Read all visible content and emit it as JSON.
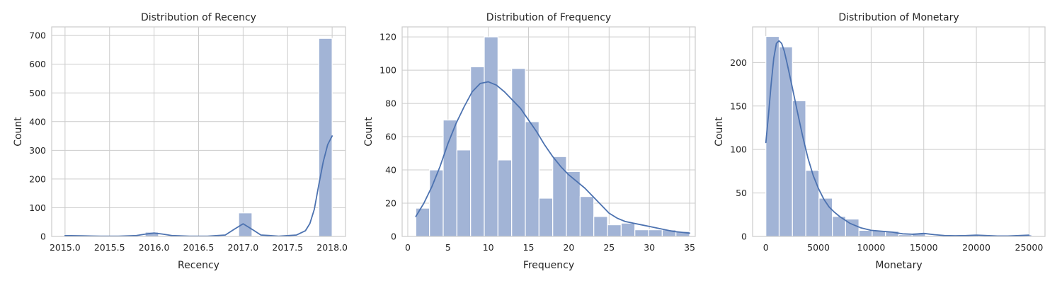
{
  "chart_data": [
    {
      "type": "bar",
      "title": "Distribution of Recency",
      "xlabel": "Recency",
      "ylabel": "Count",
      "xlim": [
        2014.85,
        2018.15
      ],
      "ylim": [
        0,
        730
      ],
      "xticks": [
        2015.0,
        2015.5,
        2016.0,
        2016.5,
        2017.0,
        2017.5,
        2018.0
      ],
      "xtick_labels": [
        "2015.0",
        "2015.5",
        "2016.0",
        "2016.5",
        "2017.0",
        "2017.5",
        "2018.0"
      ],
      "yticks": [
        0,
        100,
        200,
        300,
        400,
        500,
        600,
        700
      ],
      "ytick_labels": [
        "0",
        "100",
        "200",
        "300",
        "400",
        "500",
        "600",
        "700"
      ],
      "bin_edges": [
        2015.0,
        2015.15,
        2015.3,
        2015.45,
        2015.6,
        2015.75,
        2015.9,
        2016.05,
        2016.2,
        2016.35,
        2016.5,
        2016.65,
        2016.8,
        2016.95,
        2017.1,
        2017.25,
        2017.4,
        2017.55,
        2017.7,
        2017.85,
        2018.0
      ],
      "counts": [
        5,
        0,
        0,
        0,
        0,
        0,
        15,
        0,
        0,
        0,
        0,
        0,
        0,
        82,
        0,
        0,
        0,
        0,
        0,
        690
      ],
      "kde": {
        "x": [
          2015.0,
          2015.2,
          2015.4,
          2015.6,
          2015.8,
          2015.9,
          2016.0,
          2016.1,
          2016.2,
          2016.4,
          2016.6,
          2016.8,
          2016.9,
          2017.0,
          2017.1,
          2017.2,
          2017.4,
          2017.6,
          2017.7,
          2017.75,
          2017.8,
          2017.85,
          2017.9,
          2017.95,
          2018.0
        ],
        "y": [
          3,
          2,
          1,
          1,
          3,
          8,
          12,
          8,
          3,
          1,
          1,
          5,
          25,
          44,
          25,
          5,
          1,
          5,
          20,
          45,
          95,
          180,
          260,
          320,
          350
        ]
      }
    },
    {
      "type": "bar",
      "title": "Distribution of Frequency",
      "xlabel": "Frequency",
      "ylabel": "Count",
      "xlim": [
        -0.7,
        35.7
      ],
      "ylim": [
        0,
        126
      ],
      "xticks": [
        0,
        5,
        10,
        15,
        20,
        25,
        30,
        35
      ],
      "xtick_labels": [
        "0",
        "5",
        "10",
        "15",
        "20",
        "25",
        "30",
        "35"
      ],
      "yticks": [
        0,
        20,
        40,
        60,
        80,
        100,
        120
      ],
      "ytick_labels": [
        "0",
        "20",
        "40",
        "60",
        "80",
        "100",
        "120"
      ],
      "bin_edges": [
        1.0,
        2.7,
        4.4,
        6.1,
        7.8,
        9.5,
        11.2,
        12.9,
        14.6,
        16.3,
        18.0,
        19.7,
        21.4,
        23.1,
        24.8,
        26.5,
        28.2,
        29.9,
        31.6,
        33.3,
        35.0
      ],
      "counts": [
        17,
        40,
        70,
        52,
        102,
        120,
        46,
        101,
        69,
        23,
        48,
        39,
        24,
        12,
        7,
        8,
        4,
        4,
        4,
        3
      ],
      "kde": {
        "x": [
          1,
          2,
          3,
          4,
          5,
          6,
          7,
          8,
          9,
          10,
          11,
          12,
          13,
          14,
          15,
          16,
          17,
          18,
          19,
          20,
          21,
          22,
          23,
          24,
          25,
          26,
          27,
          28,
          29,
          30,
          31,
          32,
          33,
          34,
          35
        ],
        "y": [
          12,
          20,
          30,
          42,
          56,
          68,
          78,
          87,
          92,
          93,
          91,
          87,
          82,
          77,
          70,
          63,
          55,
          48,
          42,
          37,
          33,
          29,
          24,
          19,
          14,
          11,
          9,
          8,
          7,
          6,
          5,
          4,
          3,
          2.5,
          2
        ]
      }
    },
    {
      "type": "bar",
      "title": "Distribution of Monetary",
      "xlabel": "Monetary",
      "ylabel": "Count",
      "xlim": [
        -1260,
        26520
      ],
      "ylim": [
        0,
        241
      ],
      "xticks": [
        0,
        5000,
        10000,
        15000,
        20000,
        25000
      ],
      "xtick_labels": [
        "0",
        "5000",
        "10000",
        "15000",
        "20000",
        "25000"
      ],
      "yticks": [
        0,
        50,
        100,
        150,
        200
      ],
      "ytick_labels": [
        "0",
        "50",
        "100",
        "150",
        "200"
      ],
      "bin_edges": [
        0,
        1263,
        2526,
        3789,
        5052,
        6315,
        7578,
        8841,
        10104,
        11367,
        12630,
        13893,
        15156,
        16419,
        17682,
        18945,
        20208,
        21471,
        22734,
        23997,
        25260
      ],
      "counts": [
        230,
        218,
        156,
        76,
        44,
        23,
        20,
        7,
        7,
        6,
        2,
        4,
        1,
        0,
        1,
        2,
        1,
        0,
        0,
        2
      ],
      "kde": {
        "x": [
          0,
          250,
          500,
          750,
          1000,
          1250,
          1500,
          1750,
          2000,
          2500,
          3000,
          3500,
          4000,
          4500,
          5000,
          5500,
          6000,
          6500,
          7000,
          7500,
          8000,
          9000,
          10000,
          11000,
          12000,
          13000,
          14000,
          15000,
          16000,
          17000,
          18000,
          19000,
          20000,
          21000,
          22000,
          23000,
          24000,
          25000
        ],
        "y": [
          108,
          140,
          175,
          205,
          222,
          225,
          222,
          213,
          200,
          172,
          143,
          115,
          90,
          70,
          55,
          43,
          34,
          28,
          23,
          19,
          15,
          10,
          7,
          6,
          5,
          3,
          2.5,
          3.5,
          2,
          1,
          0.8,
          1,
          1.5,
          1,
          0.5,
          0.5,
          1,
          1.5
        ]
      }
    }
  ],
  "colors": {
    "bar_fill": "#a2b4d6",
    "bar_edge": "#ffffff",
    "kde_line": "#4c72b0",
    "grid": "#cccccc",
    "axes_frame": "#cccccc",
    "text": "#262626"
  }
}
